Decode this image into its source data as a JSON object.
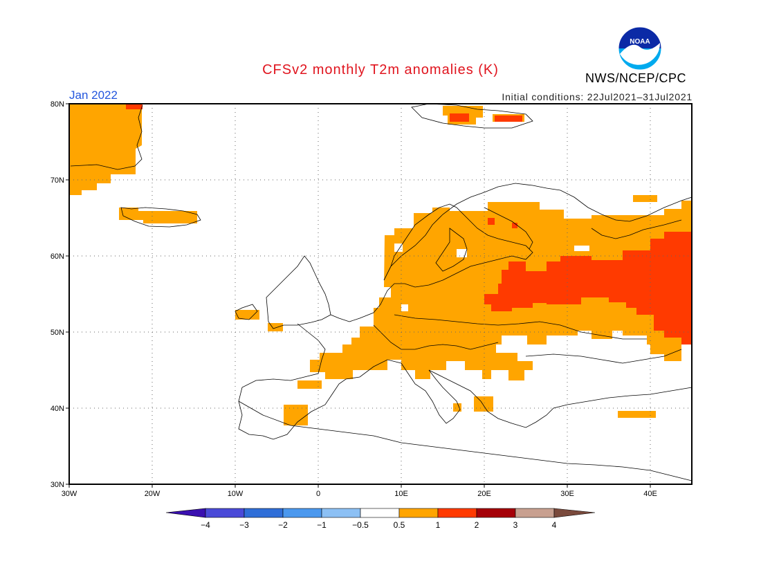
{
  "header": {
    "title": "CFSv2 monthly T2m anomalies (K)",
    "month": "Jan 2022",
    "agency": "NWS/NCEP/CPC",
    "initial_conditions": "Initial conditions: 22Jul2021–31Jul2021",
    "logo_text": "NOAA"
  },
  "map": {
    "lat_labels": [
      "80N",
      "70N",
      "60N",
      "50N",
      "40N",
      "30N"
    ],
    "lon_labels": [
      "30W",
      "20W",
      "10W",
      "0",
      "10E",
      "20E",
      "30E",
      "40E"
    ],
    "lon_range": [
      -30,
      45
    ],
    "lat_range": [
      30,
      80
    ],
    "gridlines": "dotted"
  },
  "colorbar": {
    "labels": [
      "−4",
      "−3",
      "−2",
      "−1",
      "−0.5",
      "0.5",
      "1",
      "2",
      "3",
      "4"
    ],
    "colors": [
      "#3a10b0",
      "#4a4ad8",
      "#2f6ed8",
      "#4b98ee",
      "#8cc0f4",
      "#ffffff",
      "#ffa500",
      "#ff3a00",
      "#a50008",
      "#c8a090",
      "#7a4a3c"
    ]
  },
  "anomaly_colors": {
    "warm1": "#ffa500",
    "warm2": "#ff3a00"
  }
}
